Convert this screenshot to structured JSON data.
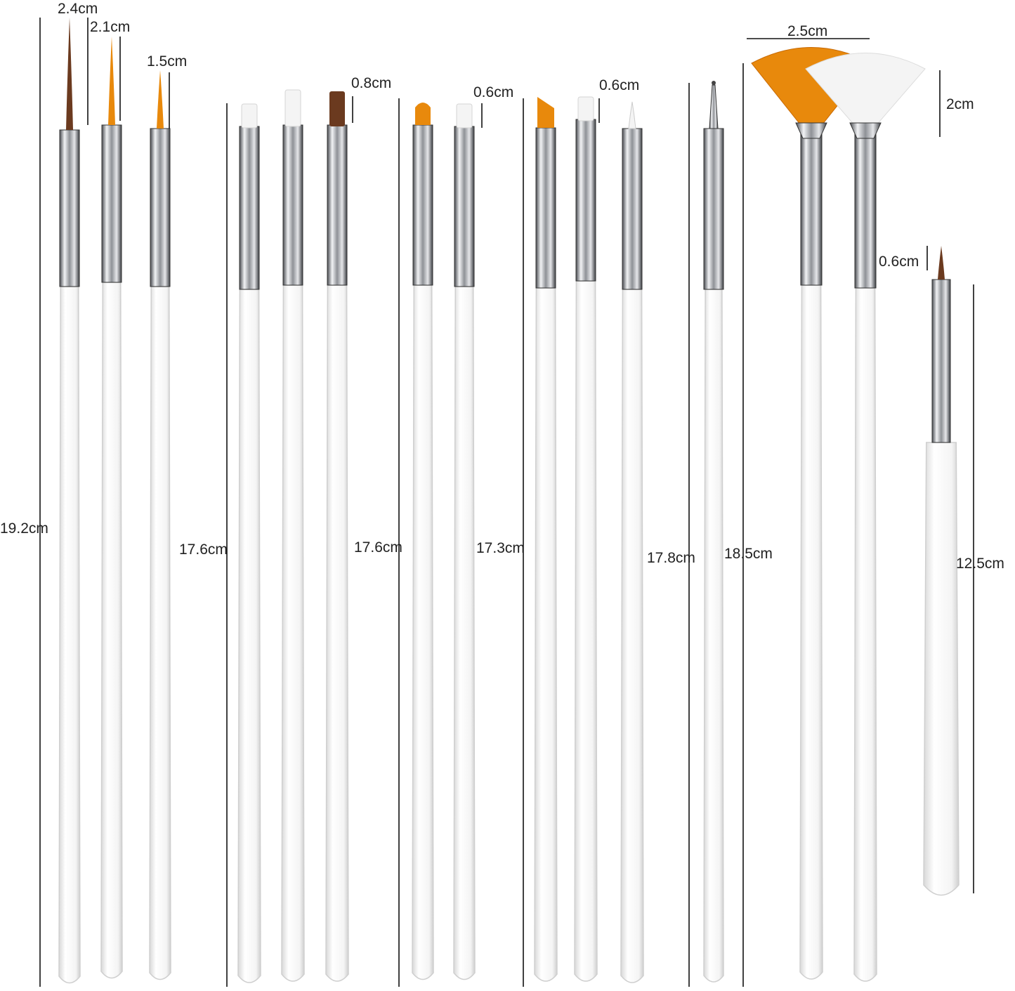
{
  "labels": {
    "total_1": "19.2cm",
    "tip_1": "2.4cm",
    "tip_2": "2.1cm",
    "tip_3": "1.5cm",
    "total_2": "17.6cm",
    "tip_4": "0.8cm",
    "total_3": "17.6cm",
    "tip_5": "0.6cm",
    "total_4": "17.3cm",
    "tip_6": "0.6cm",
    "total_5": "17.8cm",
    "total_6": "18.5cm",
    "fan_width": "2.5cm",
    "fan_height": "2cm",
    "tip_7": "0.6cm",
    "total_7": "12.5cm"
  },
  "colors": {
    "brown_bristle": "#6b3a1f",
    "orange_bristle": "#e8890c",
    "white_bristle": "#f4f4f4",
    "ferrule": "#b9bcc0",
    "handle": "#ffffff"
  }
}
